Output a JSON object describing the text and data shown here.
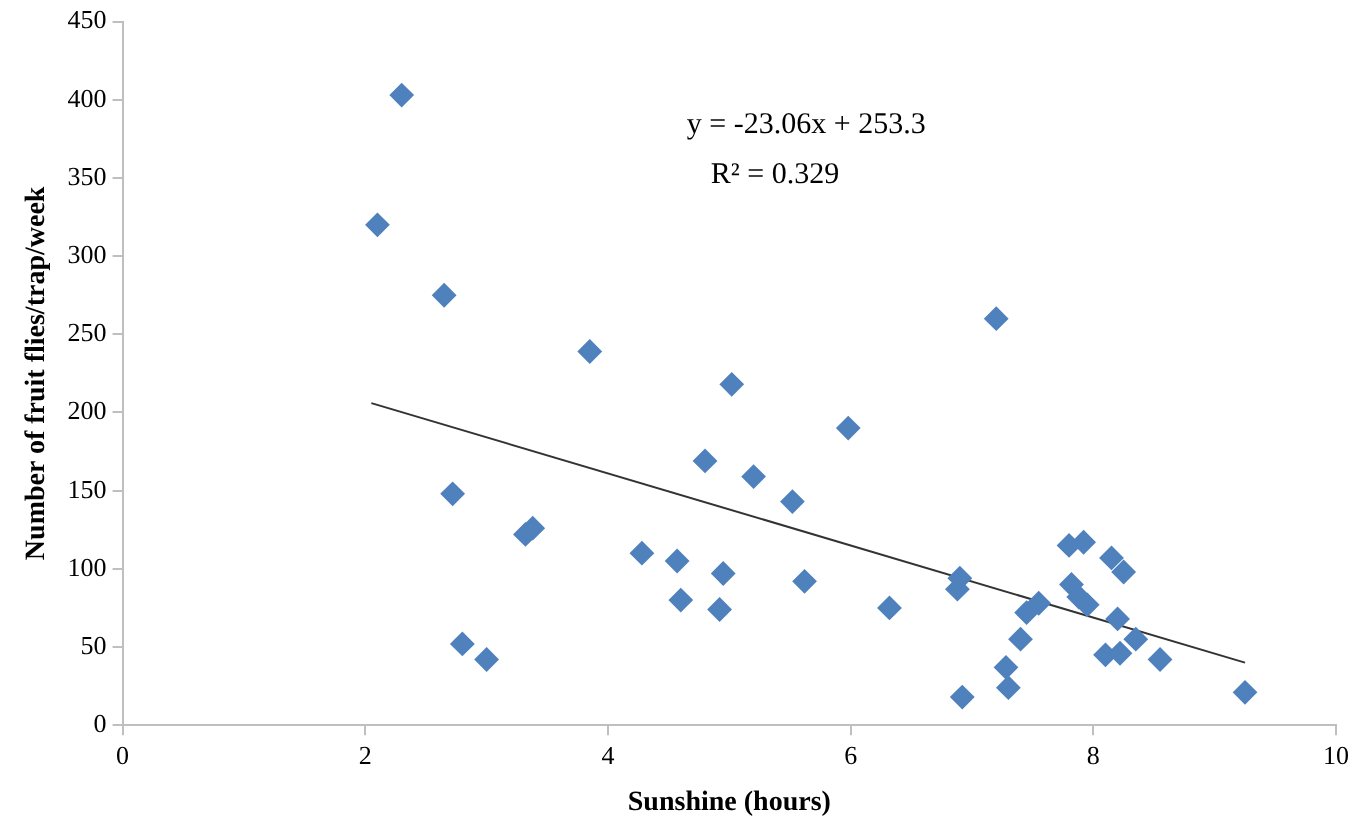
{
  "chart_data": {
    "type": "scatter",
    "xlabel": "Sunshine (hours)",
    "ylabel": "Number of fruit flies/trap/week",
    "xlim": [
      0,
      10
    ],
    "xticks": [
      0,
      2,
      4,
      6,
      8,
      10
    ],
    "ylim": [
      0,
      450
    ],
    "yticks": [
      0,
      50,
      100,
      150,
      200,
      250,
      300,
      350,
      400,
      450
    ],
    "grid": false,
    "legend": false,
    "marker": "diamond",
    "annotations": [
      "y = -23.06x + 253.3",
      "R² = 0.329"
    ],
    "series": [
      {
        "color": "#4f81bd",
        "x": [
          2.1,
          2.3,
          2.65,
          2.72,
          2.8,
          3.0,
          3.32,
          3.38,
          3.85,
          4.28,
          4.57,
          4.6,
          4.8,
          4.92,
          4.95,
          5.02,
          5.2,
          5.52,
          5.62,
          5.98,
          6.32,
          6.88,
          6.9,
          6.92,
          7.2,
          7.28,
          7.3,
          7.4,
          7.45,
          7.55,
          7.8,
          7.82,
          7.88,
          7.92,
          7.95,
          8.1,
          8.15,
          8.2,
          8.22,
          8.25,
          8.35,
          8.55,
          9.25
        ],
        "values": [
          320,
          403,
          275,
          148,
          52,
          42,
          122,
          126,
          239,
          110,
          105,
          80,
          169,
          74,
          97,
          218,
          159,
          143,
          92,
          190,
          75,
          87,
          94,
          18,
          260,
          37,
          24,
          55,
          72,
          78,
          115,
          90,
          82,
          117,
          77,
          45,
          107,
          68,
          46,
          98,
          55,
          42,
          21
        ]
      },
      {
        "type": "line",
        "color": "#333333",
        "x": [
          2.05,
          9.25
        ],
        "values": [
          206,
          40
        ],
        "marker": "none"
      }
    ]
  }
}
